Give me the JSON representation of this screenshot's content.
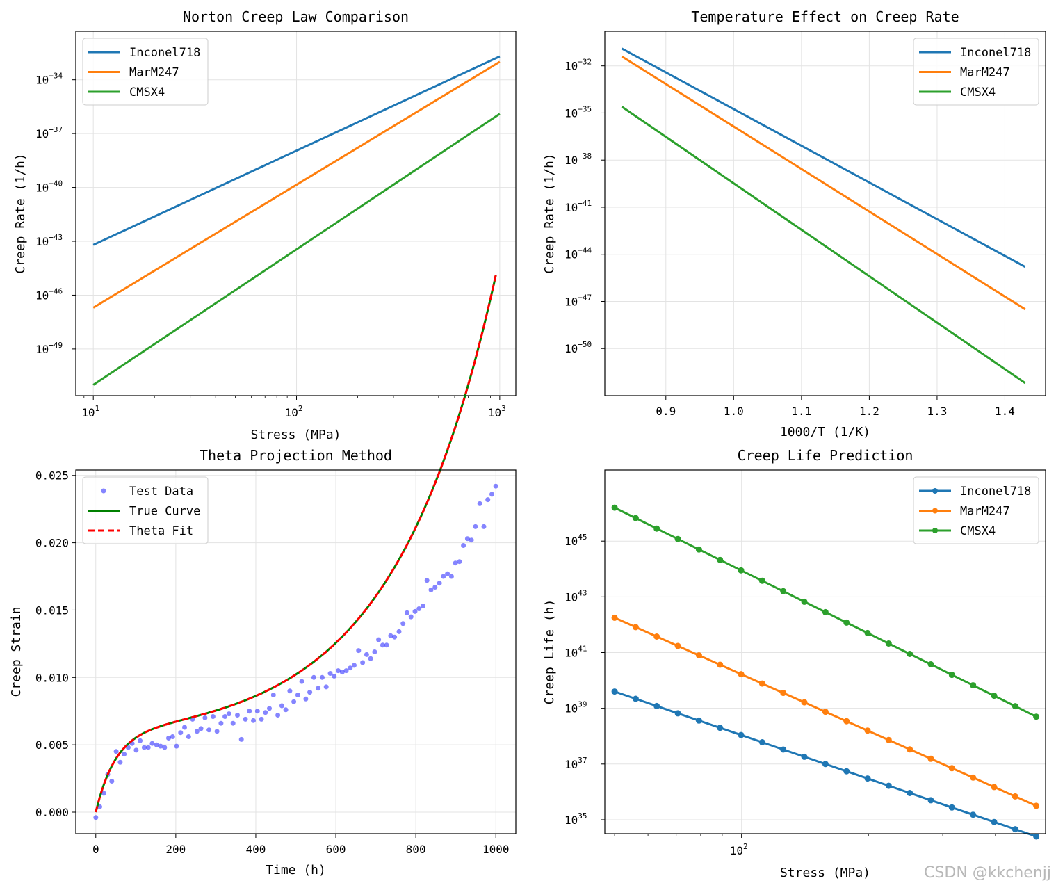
{
  "watermark": "CSDN @kkchenjj",
  "chart_data": [
    {
      "type": "line",
      "title": "Norton Creep Law Comparison",
      "xlabel": "Stress (MPa)",
      "ylabel": "Creep Rate (1/h)",
      "xscale": "log",
      "yscale": "log",
      "xlim": [
        8.2,
        1200
      ],
      "ylim": [
        -51.6,
        -31.3
      ],
      "xticks": [
        {
          "v": 10,
          "label": "10"
        },
        {
          "v": 100,
          "label": "10"
        },
        {
          "v": 1000,
          "label": "10"
        }
      ],
      "xtick_exps": [
        "1",
        "2",
        "3"
      ],
      "yticks": [
        -34,
        -37,
        -40,
        -43,
        -46,
        -49
      ],
      "ytick_labels": [
        "10",
        "10",
        "10",
        "10",
        "10",
        "10"
      ],
      "ytick_exps": [
        "−34",
        "−37",
        "−40",
        "−43",
        "−46",
        "−49"
      ],
      "grid": true,
      "legend_position": "upper-left",
      "series": [
        {
          "name": "Inconel718",
          "color": "#1f77b4",
          "x": [
            10,
            1000
          ],
          "y": [
            -43.2,
            -32.7
          ]
        },
        {
          "name": "MarM247",
          "color": "#ff7f0e",
          "x": [
            10,
            1000
          ],
          "y": [
            -46.7,
            -33.0
          ]
        },
        {
          "name": "CMSX4",
          "color": "#2ca02c",
          "x": [
            10,
            1000
          ],
          "y": [
            -51.0,
            -35.9
          ]
        }
      ]
    },
    {
      "type": "line",
      "title": "Temperature Effect on Creep Rate",
      "xlabel": "1000/T (1/K)",
      "ylabel": "Creep Rate (1/h)",
      "yscale": "log",
      "xlim": [
        0.81,
        1.46
      ],
      "ylim": [
        -53.0,
        -29.8
      ],
      "xticks": [
        0.9,
        1.0,
        1.1,
        1.2,
        1.3,
        1.4
      ],
      "xtick_labels": [
        "0.9",
        "1.0",
        "1.1",
        "1.2",
        "1.3",
        "1.4"
      ],
      "yticks": [
        -32,
        -35,
        -38,
        -41,
        -44,
        -47,
        -50
      ],
      "ytick_labels": [
        "10",
        "10",
        "10",
        "10",
        "10",
        "10",
        "10"
      ],
      "ytick_exps": [
        "−32",
        "−35",
        "−38",
        "−41",
        "−44",
        "−47",
        "−50"
      ],
      "grid": true,
      "legend_position": "upper-right",
      "series": [
        {
          "name": "Inconel718",
          "color": "#1f77b4",
          "x": [
            0.835,
            1.43
          ],
          "y": [
            -30.9,
            -44.8
          ]
        },
        {
          "name": "MarM247",
          "color": "#ff7f0e",
          "x": [
            0.835,
            1.43
          ],
          "y": [
            -31.4,
            -47.5
          ]
        },
        {
          "name": "CMSX4",
          "color": "#2ca02c",
          "x": [
            0.835,
            1.43
          ],
          "y": [
            -34.6,
            -52.2
          ]
        }
      ]
    },
    {
      "type": "line",
      "title": "Theta Projection Method",
      "xlabel": "Time (h)",
      "ylabel": "Creep Strain",
      "xlim": [
        -50,
        1050
      ],
      "ylim": [
        -0.0016,
        0.0254
      ],
      "xticks": [
        0,
        200,
        400,
        600,
        800,
        1000
      ],
      "xtick_labels": [
        "0",
        "200",
        "400",
        "600",
        "800",
        "1000"
      ],
      "yticks": [
        0.0,
        0.005,
        0.01,
        0.015,
        0.02,
        0.025
      ],
      "ytick_labels": [
        "0.000",
        "0.005",
        "0.010",
        "0.015",
        "0.020",
        "0.025"
      ],
      "grid": true,
      "legend_position": "upper-left",
      "legend": [
        "Test Data",
        "True Curve",
        "Theta Fit"
      ],
      "theta": [
        0.006,
        0.02,
        0.0007,
        0.0039
      ],
      "scatter_color": "#3333ff",
      "true_color": "#008000",
      "fit_color": "#ff0000",
      "scatter": {
        "x": [
          0,
          10,
          20,
          30,
          40,
          51,
          61,
          71,
          81,
          91,
          101,
          111,
          121,
          131,
          141,
          152,
          162,
          172,
          182,
          192,
          202,
          212,
          222,
          232,
          242,
          253,
          263,
          273,
          283,
          293,
          303,
          313,
          323,
          333,
          343,
          354,
          364,
          374,
          384,
          394,
          404,
          414,
          424,
          434,
          444,
          455,
          465,
          475,
          485,
          495,
          505,
          515,
          525,
          535,
          545,
          556,
          566,
          576,
          586,
          596,
          606,
          616,
          626,
          636,
          646,
          657,
          667,
          677,
          687,
          697,
          707,
          717,
          727,
          737,
          747,
          758,
          768,
          778,
          788,
          798,
          808,
          818,
          828,
          838,
          848,
          859,
          869,
          879,
          889,
          899,
          909,
          919,
          929,
          939,
          949,
          960,
          970,
          980,
          990,
          1000
        ],
        "y": [
          -0.0004,
          0.0004,
          0.0014,
          0.0028,
          0.0023,
          0.0045,
          0.0037,
          0.0043,
          0.0048,
          0.0051,
          0.0046,
          0.0053,
          0.0048,
          0.0048,
          0.0051,
          0.005,
          0.0049,
          0.0048,
          0.0055,
          0.0056,
          0.0049,
          0.0059,
          0.0063,
          0.0056,
          0.0069,
          0.006,
          0.0062,
          0.007,
          0.0061,
          0.0071,
          0.006,
          0.0066,
          0.0071,
          0.0073,
          0.0066,
          0.0072,
          0.0054,
          0.0069,
          0.0075,
          0.0068,
          0.0075,
          0.0069,
          0.0074,
          0.0077,
          0.0087,
          0.0072,
          0.0079,
          0.0076,
          0.009,
          0.0082,
          0.0087,
          0.0097,
          0.0084,
          0.0089,
          0.01,
          0.0092,
          0.01,
          0.0093,
          0.0103,
          0.0101,
          0.0105,
          0.0104,
          0.0105,
          0.0107,
          0.0109,
          0.012,
          0.0111,
          0.0117,
          0.0114,
          0.0119,
          0.0128,
          0.0124,
          0.0124,
          0.0131,
          0.013,
          0.0134,
          0.014,
          0.0148,
          0.0145,
          0.0149,
          0.0151,
          0.0153,
          0.0172,
          0.0165,
          0.0167,
          0.017,
          0.0175,
          0.0177,
          0.0175,
          0.0185,
          0.0186,
          0.0198,
          0.0203,
          0.0202,
          0.0212,
          0.0229,
          0.0212,
          0.0232,
          0.0236,
          0.0242
        ]
      }
    },
    {
      "type": "line",
      "title": "Creep Life Prediction",
      "xlabel": "Stress (MPa)",
      "ylabel": "Creep Life (h)",
      "xscale": "log",
      "yscale": "log",
      "xlim": [
        47.4,
        526
      ],
      "ylim": [
        34.5,
        47.55
      ],
      "xticks": [
        {
          "v": 100,
          "label": "10"
        }
      ],
      "xtick_exps": [
        "2"
      ],
      "yticks": [
        35,
        37,
        39,
        41,
        43,
        45
      ],
      "ytick_labels": [
        "10",
        "10",
        "10",
        "10",
        "10",
        "10"
      ],
      "ytick_exps": [
        "35",
        "37",
        "39",
        "41",
        "43",
        "45"
      ],
      "grid": true,
      "legend_position": "upper-right",
      "markers": "circle",
      "series": [
        {
          "name": "Inconel718",
          "color": "#1f77b4",
          "x_range": [
            50,
            500
          ],
          "n": 21,
          "y_range": [
            39.6,
            34.4
          ]
        },
        {
          "name": "MarM247",
          "color": "#ff7f0e",
          "x_range": [
            50,
            500
          ],
          "n": 21,
          "y_range": [
            42.25,
            35.5
          ]
        },
        {
          "name": "CMSX4",
          "color": "#2ca02c",
          "x_range": [
            50,
            500
          ],
          "n": 21,
          "y_range": [
            46.2,
            38.7
          ]
        }
      ]
    }
  ]
}
